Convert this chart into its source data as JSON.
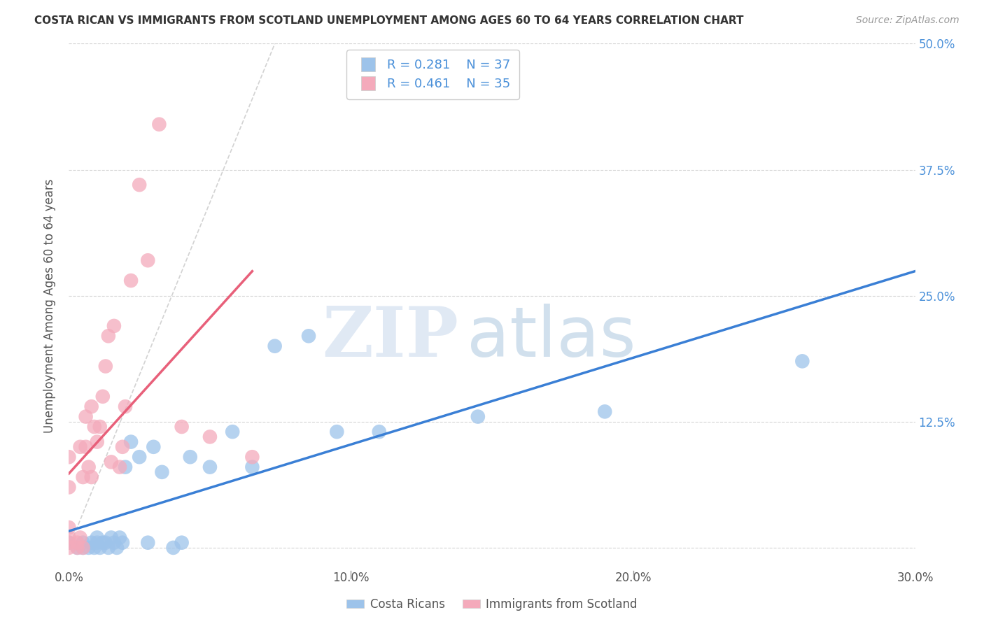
{
  "title": "COSTA RICAN VS IMMIGRANTS FROM SCOTLAND UNEMPLOYMENT AMONG AGES 60 TO 64 YEARS CORRELATION CHART",
  "source": "Source: ZipAtlas.com",
  "ylabel": "Unemployment Among Ages 60 to 64 years",
  "xlim": [
    0.0,
    0.3
  ],
  "ylim": [
    -0.02,
    0.5
  ],
  "blue_color": "#9DC3EA",
  "pink_color": "#F4AABB",
  "blue_line_color": "#3A7FD5",
  "pink_line_color": "#E8607A",
  "legend_r1": "R = 0.281",
  "legend_n1": "N = 37",
  "legend_r2": "R = 0.461",
  "legend_n2": "N = 35",
  "watermark_zip": "ZIP",
  "watermark_atlas": "atlas",
  "blue_scatter_x": [
    0.0,
    0.003,
    0.005,
    0.005,
    0.007,
    0.008,
    0.009,
    0.01,
    0.01,
    0.011,
    0.012,
    0.013,
    0.014,
    0.015,
    0.016,
    0.017,
    0.018,
    0.019,
    0.02,
    0.022,
    0.025,
    0.028,
    0.03,
    0.033,
    0.037,
    0.04,
    0.043,
    0.05,
    0.058,
    0.065,
    0.073,
    0.085,
    0.095,
    0.11,
    0.145,
    0.19,
    0.26
  ],
  "blue_scatter_y": [
    0.005,
    0.0,
    0.0,
    0.005,
    0.0,
    0.005,
    0.0,
    0.005,
    0.01,
    0.0,
    0.005,
    0.005,
    0.0,
    0.01,
    0.005,
    0.0,
    0.01,
    0.005,
    0.08,
    0.105,
    0.09,
    0.005,
    0.1,
    0.075,
    0.0,
    0.005,
    0.09,
    0.08,
    0.115,
    0.08,
    0.2,
    0.21,
    0.115,
    0.115,
    0.13,
    0.135,
    0.185
  ],
  "pink_scatter_x": [
    0.0,
    0.0,
    0.0,
    0.0,
    0.0,
    0.0,
    0.003,
    0.003,
    0.004,
    0.004,
    0.005,
    0.005,
    0.006,
    0.006,
    0.007,
    0.008,
    0.008,
    0.009,
    0.01,
    0.011,
    0.012,
    0.013,
    0.014,
    0.015,
    0.016,
    0.018,
    0.019,
    0.02,
    0.022,
    0.025,
    0.028,
    0.032,
    0.04,
    0.05,
    0.065
  ],
  "pink_scatter_y": [
    0.0,
    0.005,
    0.01,
    0.02,
    0.06,
    0.09,
    0.0,
    0.005,
    0.01,
    0.1,
    0.0,
    0.07,
    0.1,
    0.13,
    0.08,
    0.07,
    0.14,
    0.12,
    0.105,
    0.12,
    0.15,
    0.18,
    0.21,
    0.085,
    0.22,
    0.08,
    0.1,
    0.14,
    0.265,
    0.36,
    0.285,
    0.42,
    0.12,
    0.11,
    0.09
  ]
}
